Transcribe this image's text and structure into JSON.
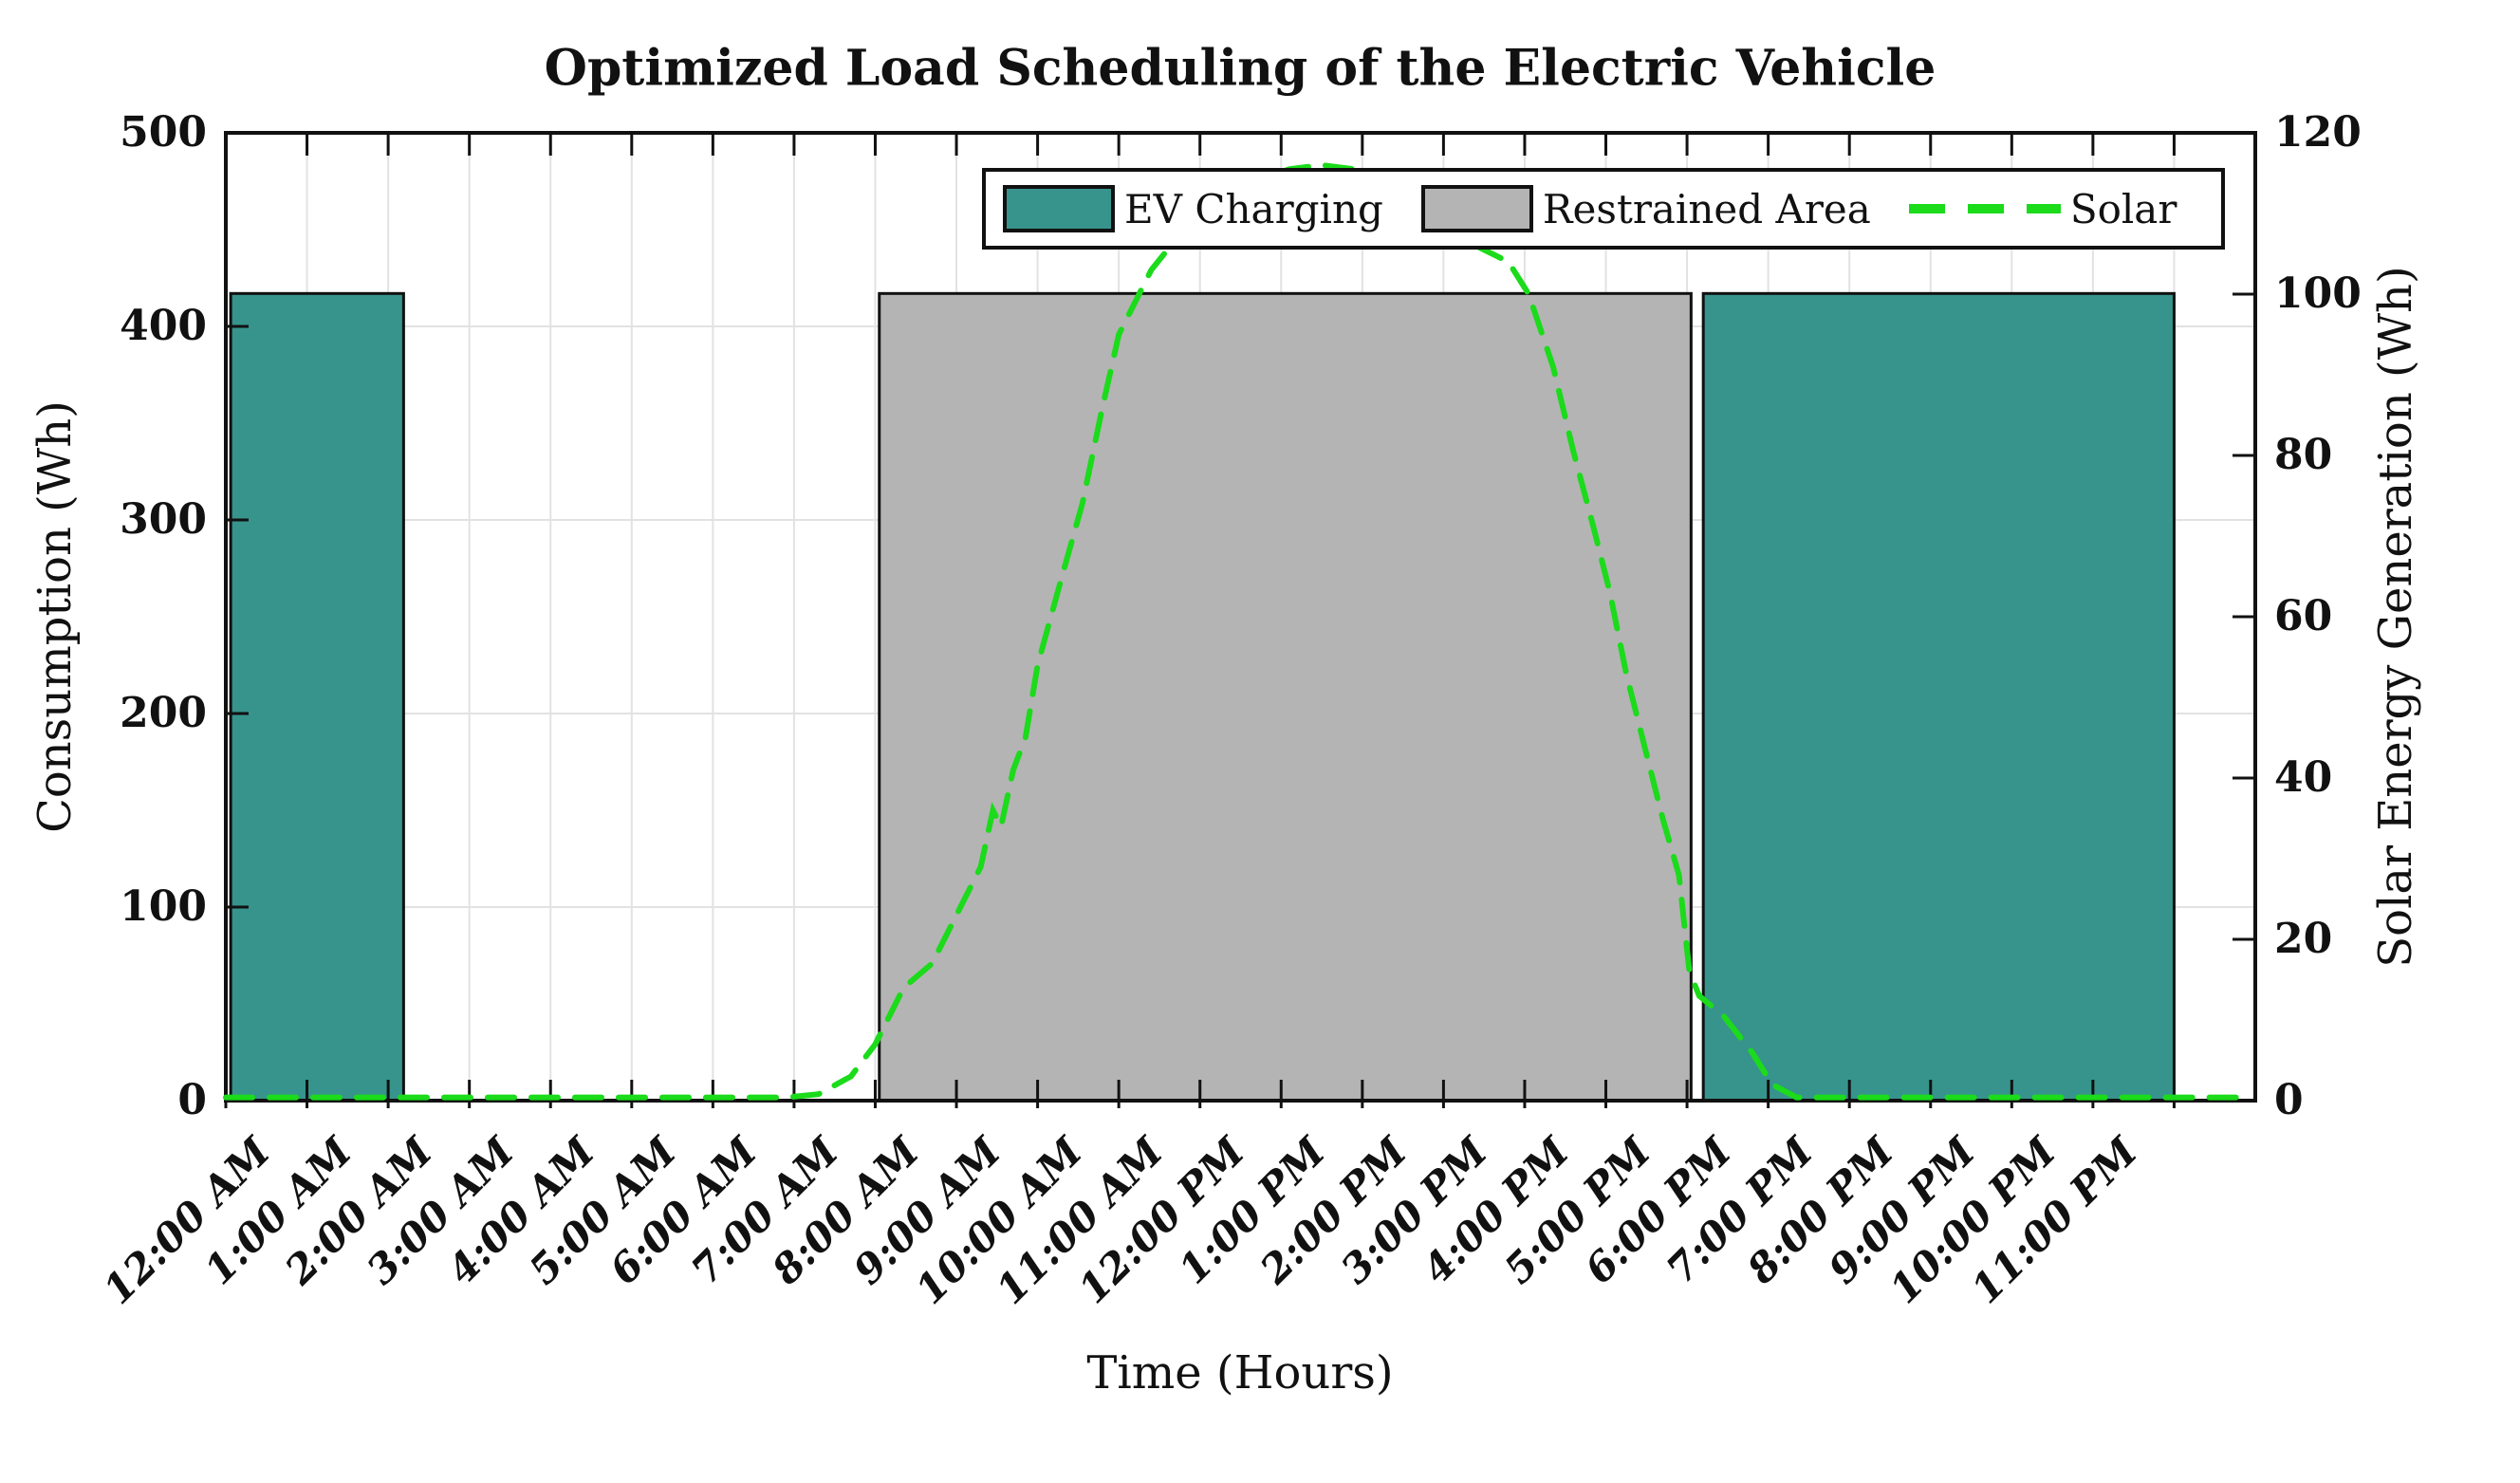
{
  "title": "Optimized Load Scheduling of the Electric Vehicle",
  "chart_data": {
    "type": "bar",
    "title": "Optimized Load Scheduling of the Electric Vehicle",
    "xlabel": "Time (Hours)",
    "categories": [
      "12:00 AM",
      "1:00 AM",
      "2:00 AM",
      "3:00 AM",
      "4:00 AM",
      "5:00 AM",
      "6:00 AM",
      "7:00 AM",
      "8:00 AM",
      "9:00 AM",
      "10:00 AM",
      "11:00 AM",
      "12:00 PM",
      "1:00 PM",
      "2:00 PM",
      "3:00 PM",
      "4:00 PM",
      "5:00 PM",
      "6:00 PM",
      "7:00 PM",
      "8:00 PM",
      "9:00 PM",
      "10:00 PM",
      "11:00 PM"
    ],
    "left_axis": {
      "label": "Consumption (Wh)",
      "range": [
        0,
        500
      ],
      "ticks": [
        0,
        100,
        200,
        300,
        400,
        500
      ]
    },
    "right_axis": {
      "label": "Solar Energy Generation (Wh)",
      "range": [
        0,
        120
      ],
      "ticks": [
        0,
        20,
        40,
        60,
        80,
        100,
        120
      ]
    },
    "grid": "on",
    "legend_position": "top-inside",
    "series": [
      {
        "name": "EV Charging",
        "type": "bar",
        "color": "#37948C",
        "edge_color": "#111111",
        "values_wh_by_hour": [
          417,
          417,
          0,
          0,
          0,
          0,
          0,
          0,
          0,
          0,
          0,
          0,
          0,
          0,
          0,
          0,
          0,
          0,
          417,
          417,
          417,
          417,
          417,
          417
        ],
        "blocks": [
          {
            "from_hour": 0.06,
            "to_hour": 2.19,
            "height_wh": 417
          },
          {
            "from_hour": 18.2,
            "to_hour": 24.0,
            "height_wh": 417
          }
        ]
      },
      {
        "name": "Restrained Area",
        "type": "area",
        "color": "#B4B4B4",
        "edge_color": "#111111",
        "blocks": [
          {
            "from_hour": 8.05,
            "to_hour": 18.05,
            "height_wh": 417
          }
        ]
      },
      {
        "name": "Solar",
        "type": "line",
        "style": "dashed",
        "color": "#1BDB1B",
        "axis": "right",
        "peak_wh": 116,
        "points_hour_wh": [
          [
            0,
            0.4
          ],
          [
            2,
            0.4
          ],
          [
            4,
            0.4
          ],
          [
            6,
            0.4
          ],
          [
            6.9,
            0.4
          ],
          [
            7.3,
            0.8
          ],
          [
            7.7,
            3
          ],
          [
            8,
            7
          ],
          [
            8.35,
            14
          ],
          [
            8.7,
            17
          ],
          [
            9,
            23
          ],
          [
            9.3,
            29
          ],
          [
            9.45,
            36
          ],
          [
            9.55,
            34
          ],
          [
            9.7,
            41
          ],
          [
            9.85,
            45
          ],
          [
            10,
            54
          ],
          [
            10.3,
            65
          ],
          [
            10.55,
            74
          ],
          [
            10.8,
            86
          ],
          [
            11,
            95
          ],
          [
            11.4,
            103
          ],
          [
            11.8,
            108
          ],
          [
            12.2,
            112
          ],
          [
            12.7,
            114
          ],
          [
            13.1,
            115.5
          ],
          [
            13.5,
            116
          ],
          [
            13.9,
            115.5
          ],
          [
            14.4,
            113
          ],
          [
            14.9,
            110
          ],
          [
            15.4,
            106
          ],
          [
            15.8,
            104
          ],
          [
            16.05,
            100
          ],
          [
            16.35,
            91
          ],
          [
            16.6,
            80.5
          ],
          [
            16.85,
            71
          ],
          [
            17.05,
            63
          ],
          [
            17.25,
            53
          ],
          [
            17.45,
            45
          ],
          [
            17.7,
            35
          ],
          [
            17.9,
            28
          ],
          [
            18.03,
            16
          ],
          [
            18.15,
            13
          ],
          [
            18.45,
            10.5
          ],
          [
            18.8,
            6
          ],
          [
            19.05,
            2
          ],
          [
            19.35,
            0.4
          ],
          [
            20,
            0.4
          ],
          [
            22,
            0.4
          ],
          [
            24,
            0.4
          ],
          [
            24.95,
            0.4
          ]
        ]
      }
    ]
  },
  "colors": {
    "ev_bar": "#37948C",
    "restrained_area": "#B4B4B4",
    "solar_line": "#1BDB1B",
    "gridline": "#E2E2E2",
    "axis": "#111111",
    "background": "#FFFFFF"
  }
}
